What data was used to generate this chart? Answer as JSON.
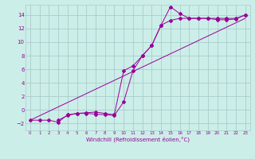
{
  "bg_color": "#cceee8",
  "grid_color": "#aacccc",
  "line_color": "#990099",
  "xlabel": "Windchill (Refroidissement éolien,°C)",
  "xlim": [
    -0.5,
    23.5
  ],
  "ylim": [
    -3.0,
    15.5
  ],
  "xticks": [
    0,
    1,
    2,
    3,
    4,
    5,
    6,
    7,
    8,
    9,
    10,
    11,
    12,
    13,
    14,
    15,
    16,
    17,
    18,
    19,
    20,
    21,
    22,
    23
  ],
  "yticks": [
    -2,
    0,
    2,
    4,
    6,
    8,
    10,
    12,
    14
  ],
  "line1_x": [
    0,
    1,
    2,
    3,
    4,
    5,
    6,
    7,
    8,
    9,
    10,
    11,
    12,
    13,
    14,
    15,
    16,
    17,
    18,
    19,
    20,
    21,
    22,
    23
  ],
  "line1_y": [
    -1.5,
    -1.5,
    -1.5,
    -1.8,
    -0.7,
    -0.5,
    -0.5,
    -0.6,
    -0.7,
    -0.8,
    1.2,
    5.8,
    8.0,
    9.5,
    12.5,
    15.2,
    14.2,
    13.5,
    13.5,
    13.5,
    13.3,
    13.3,
    13.4,
    14.0
  ],
  "line2_x": [
    3,
    4,
    5,
    6,
    7,
    8,
    9,
    10,
    11,
    12,
    13,
    14,
    15,
    16,
    17,
    18,
    19,
    20,
    21,
    22,
    23
  ],
  "line2_y": [
    -1.5,
    -0.8,
    -0.5,
    -0.4,
    -0.3,
    -0.5,
    -0.7,
    5.8,
    6.5,
    8.0,
    9.5,
    12.5,
    13.2,
    13.5,
    13.5,
    13.5,
    13.5,
    13.5,
    13.5,
    13.5,
    14.0
  ],
  "line3_x": [
    0,
    23
  ],
  "line3_y": [
    -1.5,
    13.5
  ]
}
